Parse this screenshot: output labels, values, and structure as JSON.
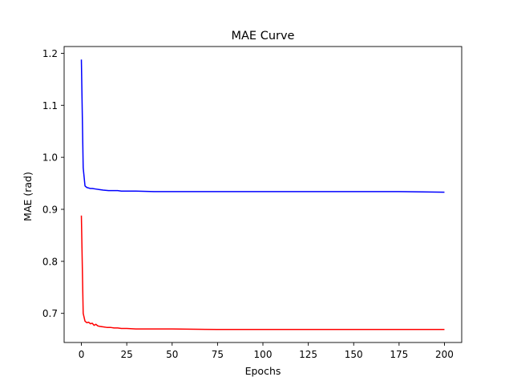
{
  "chart_data": {
    "type": "line",
    "title": "MAE Curve",
    "xlabel": "Epochs",
    "ylabel": "MAE (rad)",
    "xlim": [
      -9.5,
      209.5
    ],
    "ylim": [
      0.644,
      1.213
    ],
    "xticks": [
      0,
      25,
      50,
      75,
      100,
      125,
      150,
      175,
      200
    ],
    "yticks": [
      0.7,
      0.8,
      0.9,
      1.0,
      1.1,
      1.2
    ],
    "ytick_labels": [
      "0.7",
      "0.8",
      "0.9",
      "1.0",
      "1.1",
      "1.2"
    ],
    "grid": false,
    "legend": "none",
    "series": [
      {
        "color": "#0000ff",
        "x": [
          0,
          1,
          2,
          3,
          4,
          5,
          6,
          8,
          10,
          12,
          15,
          18,
          20,
          22,
          25,
          30,
          40,
          50,
          75,
          100,
          125,
          150,
          175,
          200
        ],
        "y": [
          1.188,
          0.98,
          0.945,
          0.942,
          0.941,
          0.94,
          0.94,
          0.939,
          0.938,
          0.937,
          0.936,
          0.936,
          0.936,
          0.935,
          0.935,
          0.935,
          0.934,
          0.934,
          0.934,
          0.934,
          0.934,
          0.934,
          0.934,
          0.933
        ]
      },
      {
        "color": "#ff0000",
        "x": [
          0,
          1,
          2,
          3,
          4,
          5,
          6,
          7,
          8,
          9,
          10,
          12,
          14,
          16,
          18,
          20,
          22,
          25,
          30,
          40,
          50,
          75,
          100,
          125,
          150,
          175,
          200
        ],
        "y": [
          0.888,
          0.7,
          0.685,
          0.682,
          0.683,
          0.68,
          0.681,
          0.677,
          0.679,
          0.676,
          0.675,
          0.674,
          0.673,
          0.673,
          0.672,
          0.672,
          0.671,
          0.671,
          0.67,
          0.67,
          0.67,
          0.669,
          0.669,
          0.669,
          0.669,
          0.669,
          0.669
        ]
      }
    ]
  }
}
